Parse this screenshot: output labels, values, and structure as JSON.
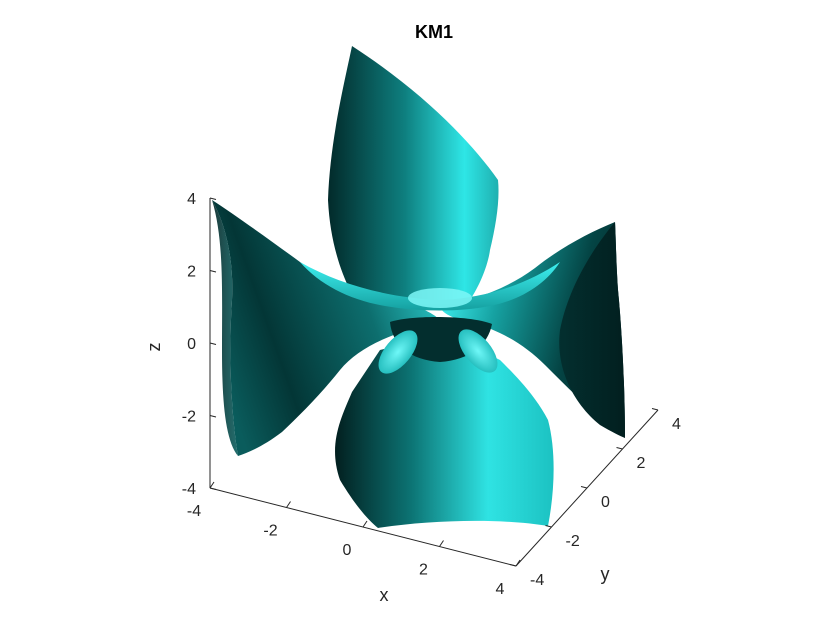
{
  "chart_data": {
    "type": "surface",
    "title": "KM1",
    "xlabel": "x",
    "ylabel": "y",
    "zlabel": "z",
    "xlim": [
      -4,
      4
    ],
    "ylim": [
      -4,
      4
    ],
    "zlim": [
      -4,
      4
    ],
    "xticks": [
      "-4",
      "-2",
      "0",
      "2",
      "4"
    ],
    "yticks": [
      "-4",
      "-2",
      "0",
      "2",
      "4"
    ],
    "zticks": [
      "-4",
      "-2",
      "0",
      "2",
      "4"
    ],
    "grid": false,
    "colors": {
      "surface_light": "#35ecec",
      "surface_mid": "#149595",
      "surface_dark": "#022a2a",
      "axis": "#262626"
    }
  }
}
